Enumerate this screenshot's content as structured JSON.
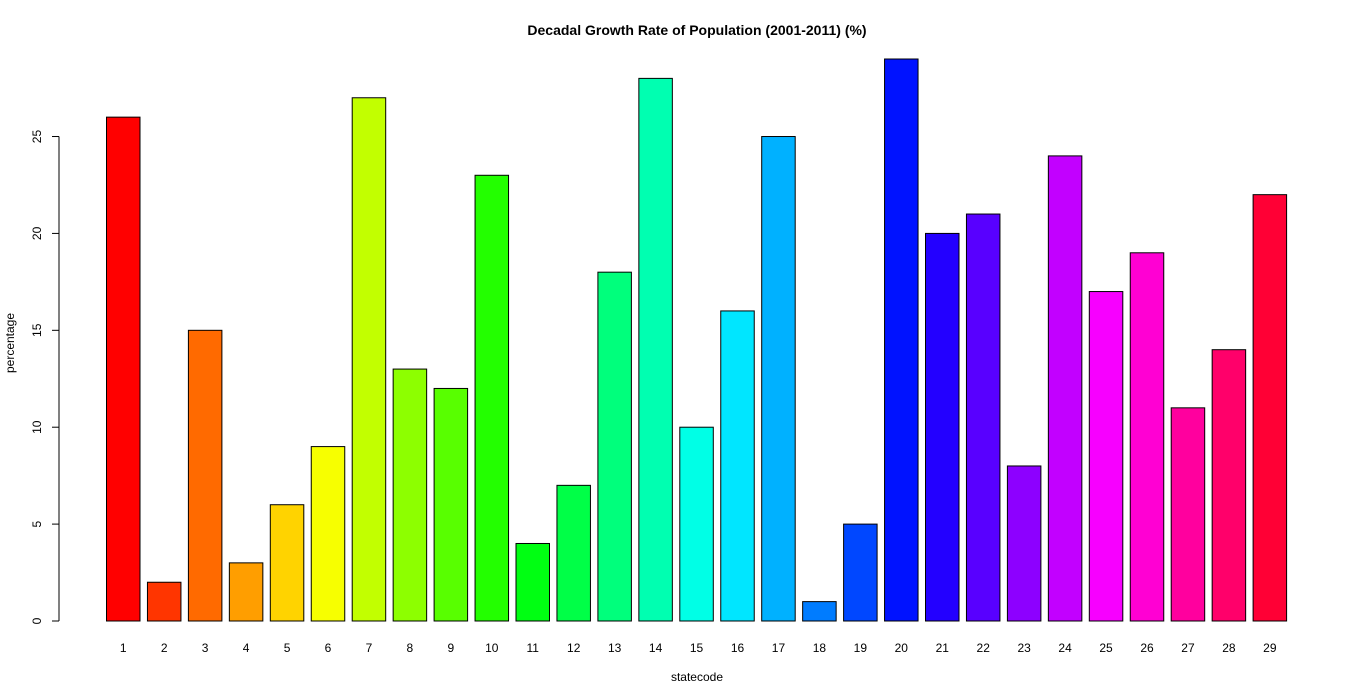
{
  "chart_data": {
    "type": "bar",
    "title": "Decadal Growth Rate of Population (2001-2011) (%)",
    "xlabel": "statecode",
    "ylabel": "percentage",
    "ylim": [
      0,
      29
    ],
    "yticks": [
      0,
      5,
      10,
      15,
      20,
      25
    ],
    "grid": false,
    "legend": "none",
    "categories": [
      "1",
      "2",
      "3",
      "4",
      "5",
      "6",
      "7",
      "8",
      "9",
      "10",
      "11",
      "12",
      "13",
      "14",
      "15",
      "16",
      "17",
      "18",
      "19",
      "20",
      "21",
      "22",
      "23",
      "24",
      "25",
      "26",
      "27",
      "28",
      "29"
    ],
    "values": [
      26,
      2,
      15,
      3,
      6,
      9,
      27,
      13,
      12,
      23,
      4,
      7,
      18,
      28,
      10,
      16,
      25,
      1,
      5,
      29,
      20,
      21,
      8,
      24,
      17,
      19,
      11,
      14,
      22
    ],
    "colors": [
      "#FF0000",
      "#FF3500",
      "#FF6A00",
      "#FF9E00",
      "#FFD300",
      "#F7FF00",
      "#C2FF00",
      "#8DFF00",
      "#58FF00",
      "#23FF00",
      "#00FF12",
      "#00FF47",
      "#00FF7C",
      "#00FFB1",
      "#00FFE6",
      "#00E6FF",
      "#00B1FF",
      "#007CFF",
      "#0047FF",
      "#0012FF",
      "#2300FF",
      "#5800FF",
      "#8D00FF",
      "#C200FF",
      "#F700FF",
      "#FF00D3",
      "#FF009E",
      "#FF006A",
      "#FF0035"
    ]
  }
}
